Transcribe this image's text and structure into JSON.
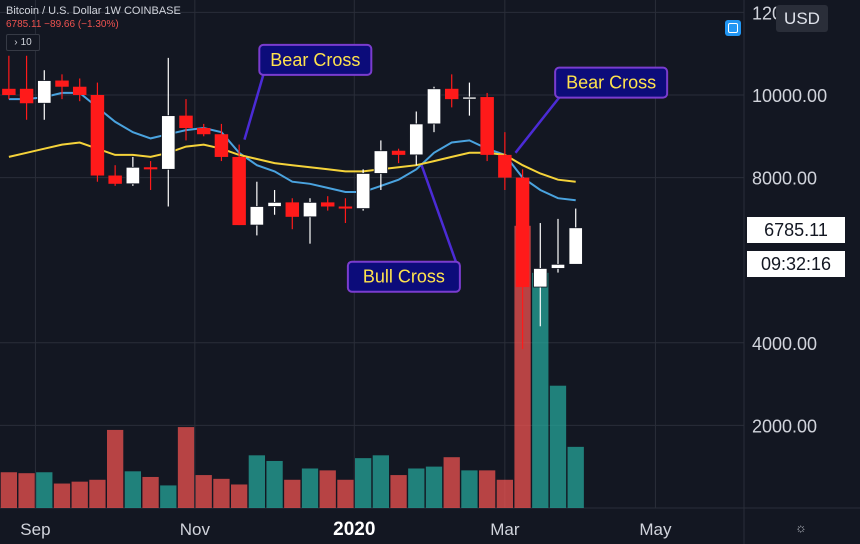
{
  "header": {
    "symbol_line": "Bitcoin / U.S. Dollar   1W   COINBASE",
    "change_line": "6785.11  −89.66 (−1.30%)",
    "collapse_count": "10",
    "collapse_icon": "chevron-right-icon"
  },
  "toolbar": {
    "currency": "USD",
    "fullscreen_icon": "fullscreen-icon"
  },
  "settings_icon": "gear-icon",
  "price_label": "6785.11",
  "countdown_label": "09:32:16",
  "chart_data": {
    "type": "candlestick",
    "y_ticks": [
      {
        "value": 12000,
        "label": "12000.00"
      },
      {
        "value": 10000,
        "label": "10000.00"
      },
      {
        "value": 8000,
        "label": "8000.00"
      },
      {
        "value": 4000,
        "label": "4000.00"
      },
      {
        "value": 2000,
        "label": "2000.00"
      }
    ],
    "ylim": [
      0,
      12300
    ],
    "x_labels": [
      {
        "index": 1.5,
        "label": "Sep",
        "bold": false
      },
      {
        "index": 10.5,
        "label": "Nov",
        "bold": false
      },
      {
        "index": 19.5,
        "label": "2020",
        "bold": true
      },
      {
        "index": 28.0,
        "label": "Mar",
        "bold": false
      },
      {
        "index": 36.5,
        "label": "May",
        "bold": false
      }
    ],
    "x_slots": 42,
    "candles": [
      {
        "o": 10150,
        "h": 10950,
        "l": 9900,
        "c": 10000
      },
      {
        "o": 10150,
        "h": 10950,
        "l": 9400,
        "c": 9800
      },
      {
        "o": 9800,
        "h": 10600,
        "l": 9400,
        "c": 10350
      },
      {
        "o": 10350,
        "h": 10500,
        "l": 9900,
        "c": 10200
      },
      {
        "o": 10200,
        "h": 10400,
        "l": 9850,
        "c": 10000
      },
      {
        "o": 10000,
        "h": 10300,
        "l": 7900,
        "c": 8050
      },
      {
        "o": 8050,
        "h": 8300,
        "l": 7800,
        "c": 7850
      },
      {
        "o": 7850,
        "h": 8500,
        "l": 7800,
        "c": 8250
      },
      {
        "o": 8250,
        "h": 8400,
        "l": 7700,
        "c": 8200
      },
      {
        "o": 8200,
        "h": 10900,
        "l": 7300,
        "c": 9500
      },
      {
        "o": 9500,
        "h": 9900,
        "l": 8900,
        "c": 9200
      },
      {
        "o": 9200,
        "h": 9300,
        "l": 9000,
        "c": 9050
      },
      {
        "o": 9050,
        "h": 9300,
        "l": 8400,
        "c": 8500
      },
      {
        "o": 8500,
        "h": 8800,
        "l": 6850,
        "c": 6850
      },
      {
        "o": 6850,
        "h": 7900,
        "l": 6600,
        "c": 7300
      },
      {
        "o": 7300,
        "h": 7700,
        "l": 7100,
        "c": 7400
      },
      {
        "o": 7400,
        "h": 7500,
        "l": 6750,
        "c": 7050
      },
      {
        "o": 7050,
        "h": 7500,
        "l": 6400,
        "c": 7400
      },
      {
        "o": 7400,
        "h": 7550,
        "l": 7200,
        "c": 7300
      },
      {
        "o": 7300,
        "h": 7500,
        "l": 6900,
        "c": 7250
      },
      {
        "o": 7250,
        "h": 8200,
        "l": 7200,
        "c": 8100
      },
      {
        "o": 8100,
        "h": 8900,
        "l": 7700,
        "c": 8650
      },
      {
        "o": 8650,
        "h": 8700,
        "l": 8350,
        "c": 8550
      },
      {
        "o": 8550,
        "h": 9600,
        "l": 8300,
        "c": 9300
      },
      {
        "o": 9300,
        "h": 10200,
        "l": 9100,
        "c": 10150
      },
      {
        "o": 10150,
        "h": 10500,
        "l": 9700,
        "c": 9900
      },
      {
        "o": 9900,
        "h": 10300,
        "l": 9500,
        "c": 9950
      },
      {
        "o": 9950,
        "h": 10050,
        "l": 8400,
        "c": 8550
      },
      {
        "o": 8550,
        "h": 9100,
        "l": 7700,
        "c": 8000
      },
      {
        "o": 8000,
        "h": 8200,
        "l": 3850,
        "c": 5350
      },
      {
        "o": 5350,
        "h": 6900,
        "l": 4400,
        "c": 5800
      },
      {
        "o": 5800,
        "h": 7000,
        "l": 5700,
        "c": 5900
      },
      {
        "o": 5900,
        "h": 7250,
        "l": 5900,
        "c": 6785
      }
    ],
    "volume": [
      380,
      370,
      380,
      260,
      280,
      300,
      830,
      390,
      330,
      240,
      860,
      350,
      310,
      250,
      560,
      500,
      300,
      420,
      400,
      300,
      530,
      560,
      350,
      420,
      440,
      540,
      400,
      400,
      300,
      3000,
      2500,
      1300,
      650
    ],
    "volume_ylim": [
      0,
      5400
    ],
    "series": [
      {
        "name": "",
        "color": "#4aa3df",
        "values": [
          9900,
          9900,
          9950,
          10050,
          10050,
          9700,
          9350,
          9100,
          8950,
          9050,
          9150,
          9200,
          9100,
          8600,
          8300,
          8150,
          7900,
          7850,
          7750,
          7650,
          7650,
          7800,
          7950,
          8200,
          8600,
          8850,
          8900,
          8700,
          8550,
          8000,
          7700,
          7500,
          7450
        ]
      },
      {
        "name": "",
        "color": "#f5d33a",
        "values": [
          8500,
          8600,
          8700,
          8800,
          8850,
          8700,
          8550,
          8550,
          8500,
          8600,
          8750,
          8800,
          8700,
          8550,
          8450,
          8350,
          8300,
          8250,
          8200,
          8150,
          8150,
          8200,
          8250,
          8300,
          8400,
          8500,
          8600,
          8600,
          8550,
          8300,
          8100,
          7950,
          7900
        ]
      }
    ],
    "annotations": [
      {
        "text": "Bear Cross",
        "box_index": 17.3,
        "box_value": 10850,
        "target_index": 13.3,
        "target_value": 8920
      },
      {
        "text": "Bull Cross",
        "box_index": 22.3,
        "box_value": 5600,
        "target_index": 23.3,
        "target_value": 8300
      },
      {
        "text": "Bear Cross",
        "box_index": 34.0,
        "box_value": 10300,
        "target_index": 28.6,
        "target_value": 8600
      }
    ],
    "colors": {
      "up": "#ffffff",
      "down": "#ff1a1a",
      "volume_up": "#26a69a",
      "volume_down": "#ef5350",
      "annotation_bg": "#0c0c7a",
      "annotation_border": "#7a3ccf",
      "annotation_text": "#ffe34d",
      "annotation_line": "#4b2bd6",
      "grid": "#2a2e39"
    }
  }
}
